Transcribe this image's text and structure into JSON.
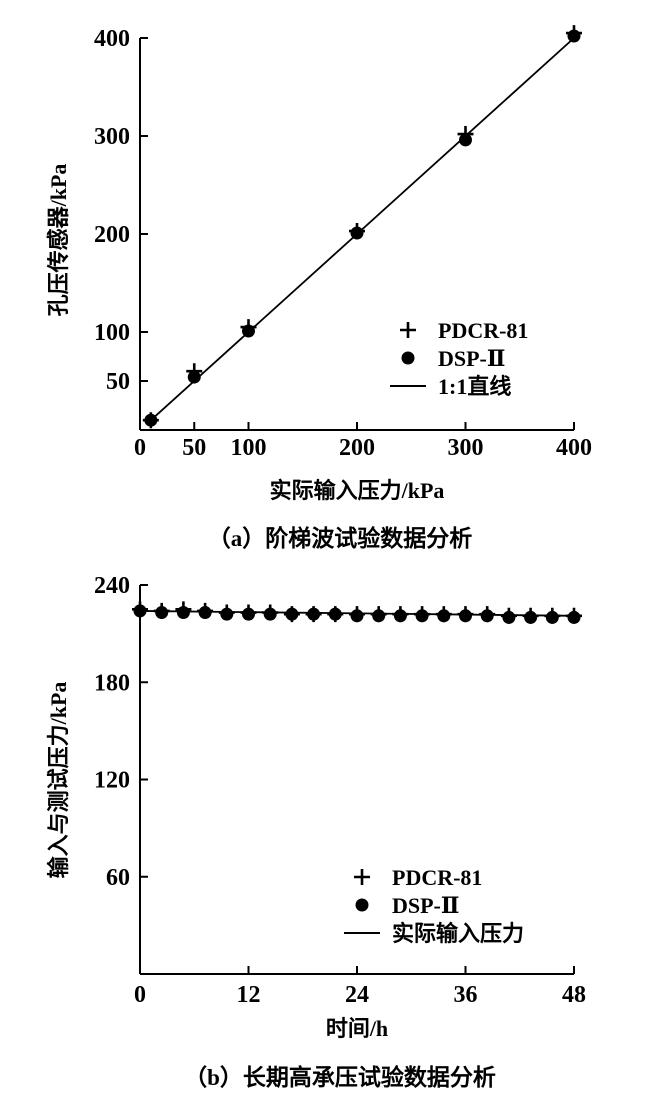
{
  "chart_data": [
    {
      "type": "scatter",
      "caption": "（a）阶梯波试验数据分析",
      "xlabel": "实际输入压力/kPa",
      "ylabel": "孔压传感器/kPa",
      "xlim": [
        0,
        400
      ],
      "ylim": [
        0,
        400
      ],
      "x_ticks": [
        "0",
        "50",
        "100",
        "200",
        "300",
        "400"
      ],
      "y_ticks": [
        "50",
        "100",
        "200",
        "300",
        "400"
      ],
      "legend_position": "bottom-right",
      "legend": [
        "PDCR-81",
        "DSP-Ⅱ",
        "1:1直线"
      ],
      "series": [
        {
          "name": "PDCR-81",
          "marker": "plus",
          "x": [
            10,
            50,
            100,
            200,
            300,
            400
          ],
          "y": [
            10,
            60,
            105,
            203,
            302,
            405
          ]
        },
        {
          "name": "DSP-Ⅱ",
          "marker": "circle",
          "x": [
            10,
            50,
            100,
            200,
            300,
            400
          ],
          "y": [
            10,
            54,
            101,
            201,
            296,
            402
          ]
        },
        {
          "name": "1:1直线",
          "marker": "line",
          "x": [
            10,
            400
          ],
          "y": [
            10,
            400
          ]
        }
      ]
    },
    {
      "type": "scatter",
      "caption": "（b）长期高承压试验数据分析",
      "xlabel": "时间/h",
      "ylabel": "输入与测试压力/kPa",
      "xlim": [
        0,
        48
      ],
      "ylim": [
        0,
        240
      ],
      "x_ticks": [
        "0",
        "12",
        "24",
        "36",
        "48"
      ],
      "y_ticks": [
        "60",
        "120",
        "180",
        "240"
      ],
      "legend_position": "bottom-right",
      "legend": [
        "PDCR-81",
        "DSP-Ⅱ",
        "实际输入压力"
      ],
      "series": [
        {
          "name": "PDCR-81",
          "marker": "plus",
          "x": [
            0,
            2.4,
            4.8,
            7.2,
            9.6,
            12,
            14.4,
            16.8,
            19.2,
            21.6,
            24,
            26.4,
            28.8,
            31.2,
            33.6,
            36,
            38.4,
            40.8,
            43.2,
            45.6,
            48
          ],
          "y": [
            225,
            224,
            225,
            224,
            223,
            223,
            223,
            222,
            222,
            222,
            222,
            222,
            222,
            222,
            222,
            222,
            222,
            221,
            221,
            221,
            221
          ]
        },
        {
          "name": "DSP-Ⅱ",
          "marker": "circle",
          "x": [
            0,
            2.4,
            4.8,
            7.2,
            9.6,
            12,
            14.4,
            16.8,
            19.2,
            21.6,
            24,
            26.4,
            28.8,
            31.2,
            33.6,
            36,
            38.4,
            40.8,
            43.2,
            45.6,
            48
          ],
          "y": [
            224,
            223,
            223,
            223,
            222,
            222,
            222,
            222,
            222,
            222,
            221,
            221,
            221,
            221,
            221,
            221,
            221,
            220,
            220,
            220,
            220
          ]
        },
        {
          "name": "实际输入压力",
          "marker": "line",
          "x": [
            0,
            48
          ],
          "y": [
            224,
            221
          ]
        }
      ]
    }
  ]
}
